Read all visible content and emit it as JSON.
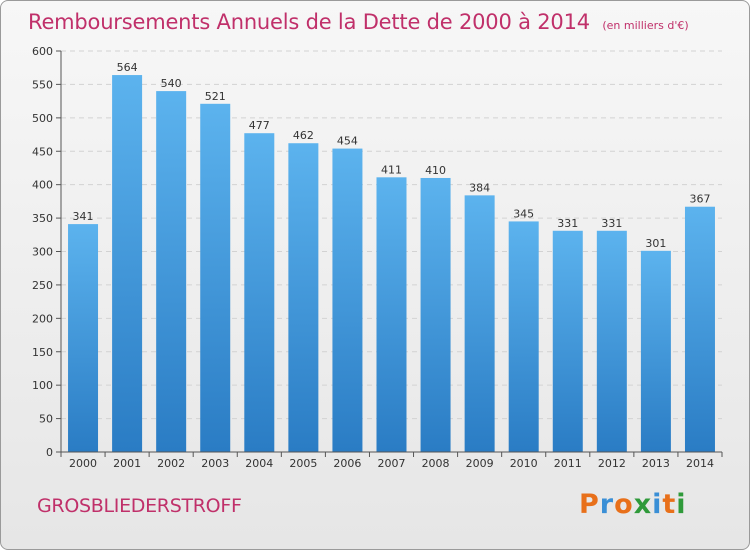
{
  "chart_data": {
    "type": "bar",
    "title": "Remboursements Annuels de la Dette de 2000 à 2014",
    "subtitle": "(en milliers d'€)",
    "categories": [
      "2000",
      "2001",
      "2002",
      "2003",
      "2004",
      "2005",
      "2006",
      "2007",
      "2008",
      "2009",
      "2010",
      "2011",
      "2012",
      "2013",
      "2014"
    ],
    "values": [
      341,
      564,
      540,
      521,
      477,
      462,
      454,
      411,
      410,
      384,
      345,
      331,
      331,
      301,
      367
    ],
    "data_labels": [
      "341",
      "564",
      "540",
      "521",
      "477",
      "462",
      "454",
      "411",
      "410",
      "384",
      "345",
      "331",
      "331",
      "301",
      "367"
    ],
    "ylim": [
      0,
      600
    ],
    "yticks": [
      0,
      50,
      100,
      150,
      200,
      250,
      300,
      350,
      400,
      450,
      500,
      550,
      600
    ],
    "grid": true,
    "xlabel": "",
    "ylabel": "",
    "bar_color": "#3a8fd6",
    "title_color": "#c0306a"
  },
  "footer": {
    "commune": "GROSBLIEDERSTROFF",
    "logo_text": "Proxiti",
    "logo_colors": [
      "#e8701a",
      "#3a8fd6",
      "#e8701a",
      "#2f9a3a",
      "#3a8fd6",
      "#e8701a",
      "#2f9a3a"
    ]
  }
}
